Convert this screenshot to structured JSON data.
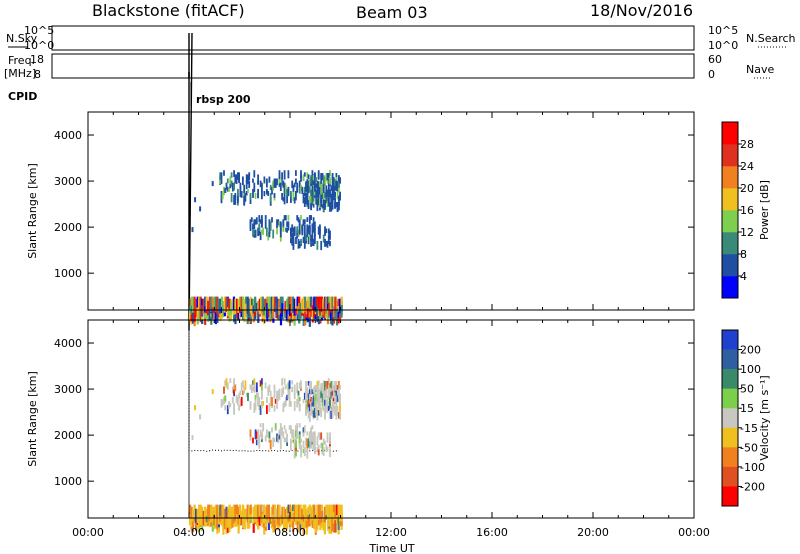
{
  "header": {
    "station": "Blackstone (fitACF)",
    "beam": "Beam 03",
    "date": "18/Nov/2016"
  },
  "params": {
    "nsky_label": "N.Sky",
    "nsky_ticks": [
      "10^5",
      "10^0"
    ],
    "nsearch_label": "N.Search",
    "freq_label_1": "Freq.",
    "freq_label_2": "[MHz]",
    "freq_ticks": [
      "18",
      "8"
    ],
    "nave_label": "Nave",
    "nave_ticks": [
      "60",
      "0"
    ],
    "cpid_label": "CPID",
    "cpid_value": "rbsp 200"
  },
  "chart_data": [
    {
      "type": "heatmap",
      "name": "power",
      "ylabel": "Slant Range [km]",
      "yticks": [
        1000,
        2000,
        3000,
        4000
      ],
      "ylim": [
        200,
        4500
      ],
      "xlim": [
        0,
        24
      ],
      "colorbar_label": "Power [dB]",
      "colorbar_ticks": [
        "4",
        "8",
        "12",
        "16",
        "20",
        "24",
        "28"
      ],
      "colors": [
        "#0000ff",
        "#1f4fa3",
        "#3a8a7a",
        "#7fcf4f",
        "#f0c020",
        "#f08020",
        "#e03020",
        "#ff0000"
      ],
      "data_window": [
        4,
        10
      ]
    },
    {
      "type": "heatmap",
      "name": "velocity",
      "ylabel": "Slant Range [km]",
      "yticks": [
        1000,
        2000,
        3000,
        4000
      ],
      "ylim": [
        200,
        4500
      ],
      "xlim": [
        0,
        24
      ],
      "colorbar_label": "Velocity [m s⁻¹]",
      "colorbar_ticks": [
        "200",
        "100",
        "50",
        "15",
        "-15",
        "-50",
        "-100",
        "-200"
      ],
      "colors": [
        "#2040d0",
        "#2f5fa0",
        "#3a8a6a",
        "#7ccf4a",
        "#c8c8c0",
        "#f0c020",
        "#f08020",
        "#e05020",
        "#ff0000"
      ],
      "data_window": [
        4,
        10
      ]
    }
  ],
  "xaxis": {
    "ticks": [
      "00:00",
      "04:00",
      "08:00",
      "12:00",
      "16:00",
      "20:00",
      "00:00"
    ],
    "label": "Time UT"
  }
}
